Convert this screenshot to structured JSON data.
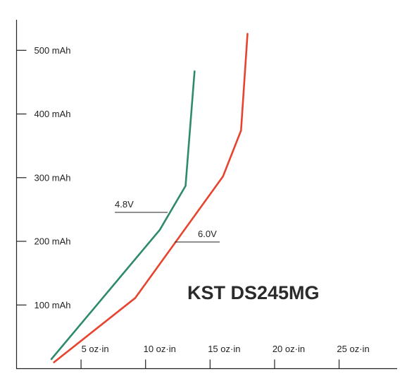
{
  "chart_data": {
    "type": "line",
    "title": "KST DS245MG",
    "xlabel": "",
    "ylabel": "",
    "x_ticks": [
      {
        "value": 5,
        "label": "5 oz·in"
      },
      {
        "value": 10,
        "label": "10 oz·in"
      },
      {
        "value": 15,
        "label": "15 oz·in"
      },
      {
        "value": 20,
        "label": "20 oz·in"
      },
      {
        "value": 25,
        "label": "25 oz·in"
      }
    ],
    "y_ticks": [
      {
        "value": 100,
        "label": "100 mAh"
      },
      {
        "value": 200,
        "label": "200 mAh"
      },
      {
        "value": 300,
        "label": "300 mAh"
      },
      {
        "value": 400,
        "label": "400 mAh"
      },
      {
        "value": 500,
        "label": "500 mAh"
      }
    ],
    "xlim": [
      0,
      29.5
    ],
    "ylim": [
      0,
      548
    ],
    "grid": false,
    "series": [
      {
        "name": "4.8V",
        "color": "#2e8b6a",
        "points": [
          [
            2.7,
            15
          ],
          [
            11.1,
            218
          ],
          [
            13.1,
            287
          ],
          [
            13.8,
            467
          ]
        ]
      },
      {
        "name": "6.0V",
        "color": "#e8432e",
        "points": [
          [
            2.9,
            10
          ],
          [
            9.2,
            111
          ],
          [
            16.0,
            302
          ],
          [
            17.4,
            374
          ],
          [
            17.9,
            526
          ]
        ]
      }
    ]
  }
}
